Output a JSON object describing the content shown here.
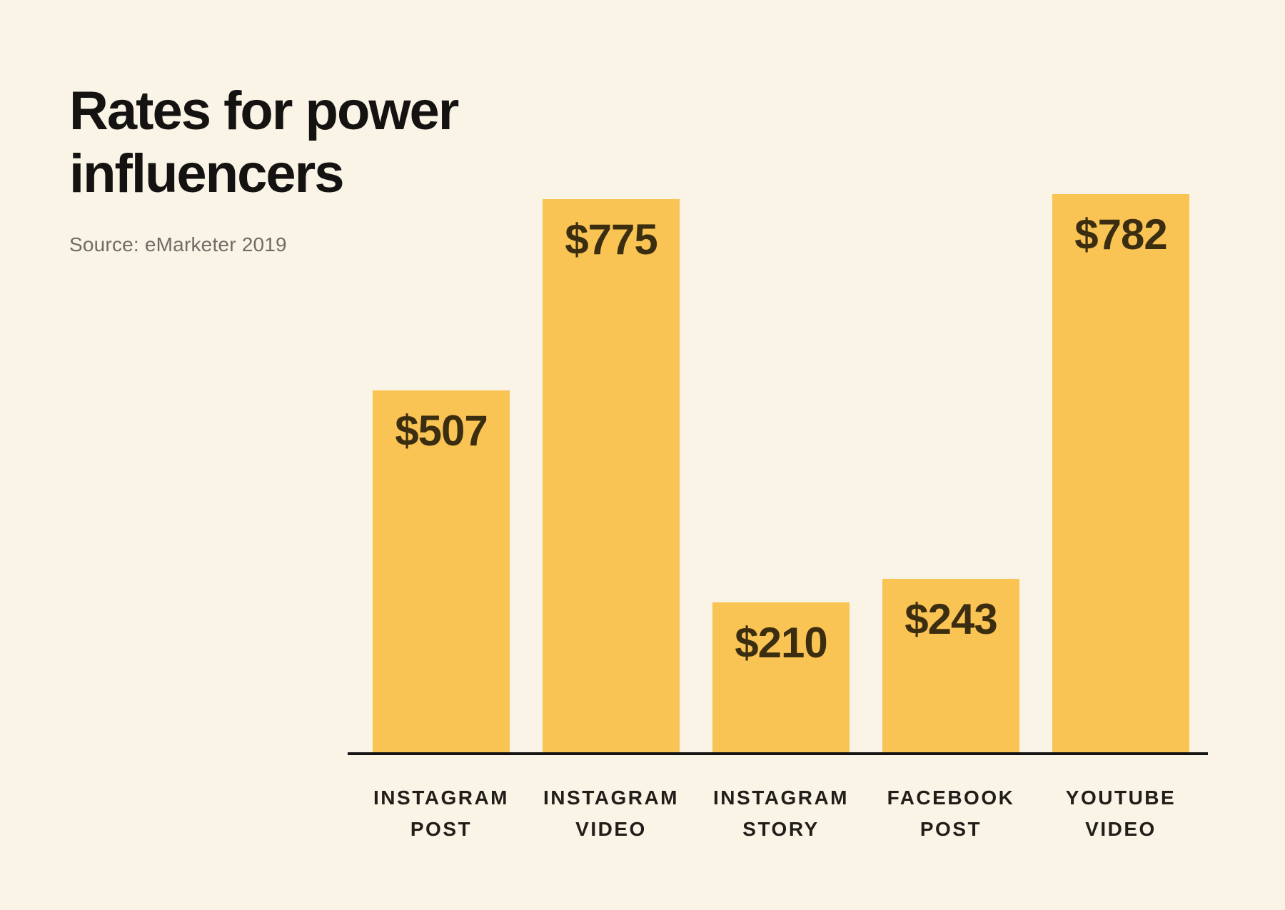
{
  "page": {
    "background_color": "#F9F4E6"
  },
  "header": {
    "title": "Rates for power\ninfluencers",
    "title_color": "#141312",
    "source": "Source: eMarketer 2019",
    "source_color": "#6F6C64"
  },
  "chart_data": {
    "type": "bar",
    "title": "Rates for power influencers",
    "source": "Source: eMarketer 2019",
    "categories": [
      "INSTAGRAM\nPOST",
      "INSTAGRAM\nVIDEO",
      "INSTAGRAM\nSTORY",
      "FACEBOOK\nPOST",
      "YOUTUBE\nVIDEO"
    ],
    "values": [
      507,
      775,
      210,
      243,
      782
    ],
    "value_labels": [
      "$507",
      "$775",
      "$210",
      "$243",
      "$782"
    ],
    "currency": "USD",
    "orientation": "vertical",
    "ylim": [
      0,
      810
    ],
    "grid": false,
    "legend": false,
    "value_label_position": "inside-top",
    "category_label_position": "below-axis",
    "bar_color": "#FAC455",
    "value_text_color": "#3A2D10",
    "category_text_color": "#211D19",
    "axis_line_color": "#141414"
  }
}
